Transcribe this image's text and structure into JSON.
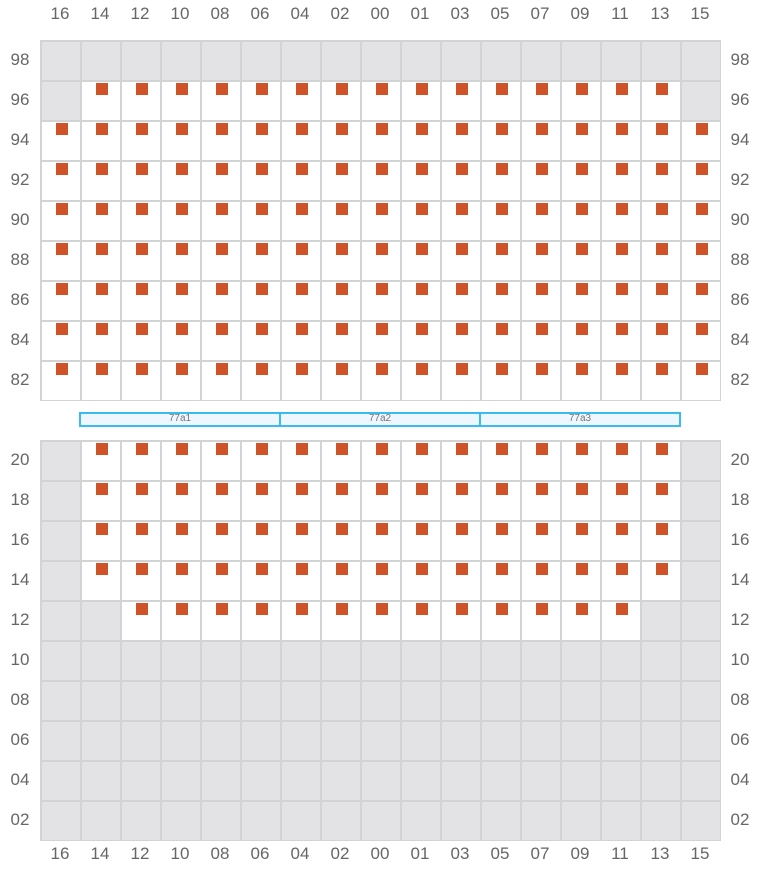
{
  "columns": [
    "16",
    "14",
    "12",
    "10",
    "08",
    "06",
    "04",
    "02",
    "00",
    "01",
    "03",
    "05",
    "07",
    "09",
    "11",
    "13",
    "15"
  ],
  "colors": {
    "seat": "#cf5229",
    "unavailable": "#e3e3e5",
    "grid": "#d3d3d6",
    "section_border": "#3bbcf0"
  },
  "sections": [
    "77a1",
    "77a2",
    "77a3"
  ],
  "upper_block": {
    "rows": [
      {
        "label": "98",
        "map": "-----------------"
      },
      {
        "label": "96",
        "map": "-xxxxxxxxxxxxxxx-"
      },
      {
        "label": "94",
        "map": "xxxxxxxxxxxxxxxxx"
      },
      {
        "label": "92",
        "map": "xxxxxxxxxxxxxxxxx"
      },
      {
        "label": "90",
        "map": "xxxxxxxxxxxxxxxxx"
      },
      {
        "label": "88",
        "map": "xxxxxxxxxxxxxxxxx"
      },
      {
        "label": "86",
        "map": "xxxxxxxxxxxxxxxxx"
      },
      {
        "label": "84",
        "map": "xxxxxxxxxxxxxxxxx"
      },
      {
        "label": "82",
        "map": "xxxxxxxxxxxxxxxxx"
      }
    ]
  },
  "lower_block": {
    "rows": [
      {
        "label": "20",
        "map": "-xxxxxxxxxxxxxxx-"
      },
      {
        "label": "18",
        "map": "-xxxxxxxxxxxxxxx-"
      },
      {
        "label": "16",
        "map": "-xxxxxxxxxxxxxxx-"
      },
      {
        "label": "14",
        "map": "-xxxxxxxxxxxxxxx-"
      },
      {
        "label": "12",
        "map": "--xxxxxxxxxxxxx--"
      },
      {
        "label": "10",
        "map": "-----------------"
      },
      {
        "label": "08",
        "map": "-----------------"
      },
      {
        "label": "06",
        "map": "-----------------"
      },
      {
        "label": "04",
        "map": "-----------------"
      },
      {
        "label": "02",
        "map": "-----------------"
      }
    ]
  }
}
